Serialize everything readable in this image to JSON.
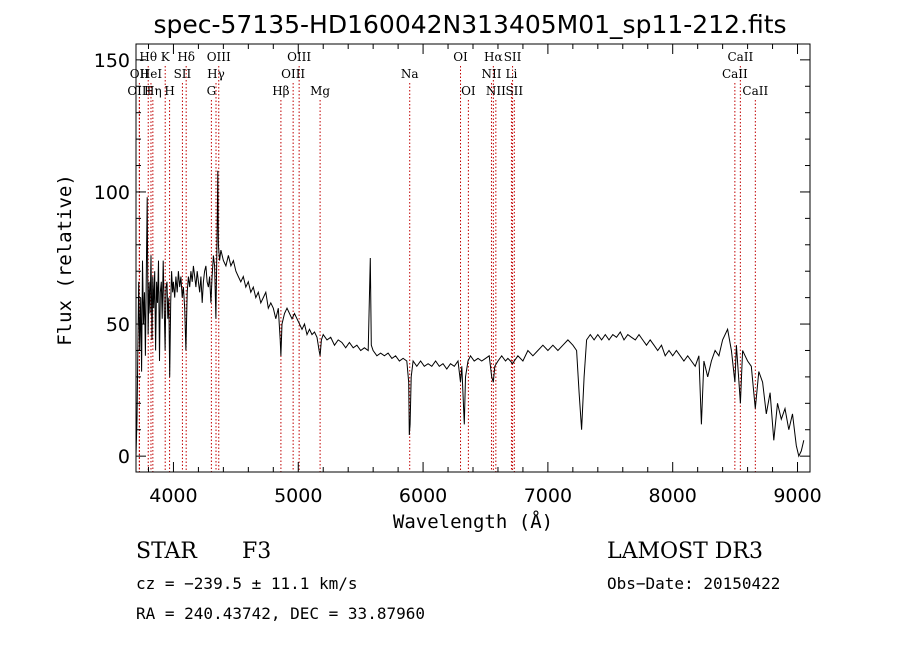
{
  "chart_data": {
    "type": "line",
    "title": "spec-57135-HD160042N313405M01_sp11-212.fits",
    "xlabel": "Wavelength (Å)",
    "ylabel": "Flux (relative)",
    "xlim": [
      3700,
      9100
    ],
    "ylim": [
      -6,
      156
    ],
    "xticks": [
      4000,
      5000,
      6000,
      7000,
      8000,
      9000
    ],
    "yticks": [
      0,
      50,
      100,
      150
    ],
    "grid": false,
    "series": [
      {
        "points": [
          [
            3700,
            0
          ],
          [
            3708,
            14
          ],
          [
            3715,
            42
          ],
          [
            3722,
            66
          ],
          [
            3730,
            40
          ],
          [
            3738,
            60
          ],
          [
            3745,
            32
          ],
          [
            3752,
            74
          ],
          [
            3760,
            50
          ],
          [
            3768,
            62
          ],
          [
            3775,
            38
          ],
          [
            3783,
            72
          ],
          [
            3790,
            98
          ],
          [
            3797,
            46
          ],
          [
            3805,
            66
          ],
          [
            3812,
            54
          ],
          [
            3820,
            76
          ],
          [
            3828,
            44
          ],
          [
            3835,
            68
          ],
          [
            3842,
            56
          ],
          [
            3850,
            70
          ],
          [
            3857,
            40
          ],
          [
            3865,
            66
          ],
          [
            3872,
            58
          ],
          [
            3880,
            74
          ],
          [
            3888,
            36
          ],
          [
            3895,
            62
          ],
          [
            3903,
            66
          ],
          [
            3910,
            52
          ],
          [
            3918,
            74
          ],
          [
            3925,
            58
          ],
          [
            3933,
            40
          ],
          [
            3940,
            64
          ],
          [
            3948,
            66
          ],
          [
            3955,
            52
          ],
          [
            3963,
            60
          ],
          [
            3970,
            30
          ],
          [
            3978,
            58
          ],
          [
            3985,
            70
          ],
          [
            3993,
            62
          ],
          [
            4000,
            66
          ],
          [
            4010,
            60
          ],
          [
            4020,
            68
          ],
          [
            4030,
            62
          ],
          [
            4040,
            70
          ],
          [
            4050,
            64
          ],
          [
            4060,
            68
          ],
          [
            4070,
            60
          ],
          [
            4080,
            64
          ],
          [
            4090,
            56
          ],
          [
            4100,
            40
          ],
          [
            4110,
            62
          ],
          [
            4120,
            68
          ],
          [
            4130,
            64
          ],
          [
            4140,
            70
          ],
          [
            4150,
            66
          ],
          [
            4160,
            72
          ],
          [
            4170,
            68
          ],
          [
            4180,
            64
          ],
          [
            4190,
            70
          ],
          [
            4200,
            66
          ],
          [
            4210,
            62
          ],
          [
            4220,
            68
          ],
          [
            4230,
            58
          ],
          [
            4240,
            66
          ],
          [
            4250,
            70
          ],
          [
            4260,
            72
          ],
          [
            4270,
            66
          ],
          [
            4280,
            64
          ],
          [
            4290,
            68
          ],
          [
            4300,
            58
          ],
          [
            4310,
            68
          ],
          [
            4320,
            76
          ],
          [
            4330,
            72
          ],
          [
            4340,
            52
          ],
          [
            4350,
            84
          ],
          [
            4355,
            108
          ],
          [
            4360,
            80
          ],
          [
            4370,
            74
          ],
          [
            4380,
            78
          ],
          [
            4400,
            74
          ],
          [
            4420,
            72
          ],
          [
            4440,
            76
          ],
          [
            4460,
            72
          ],
          [
            4480,
            74
          ],
          [
            4500,
            70
          ],
          [
            4520,
            68
          ],
          [
            4540,
            66
          ],
          [
            4560,
            68
          ],
          [
            4580,
            64
          ],
          [
            4600,
            66
          ],
          [
            4620,
            62
          ],
          [
            4640,
            64
          ],
          [
            4660,
            60
          ],
          [
            4680,
            62
          ],
          [
            4700,
            58
          ],
          [
            4720,
            60
          ],
          [
            4740,
            62
          ],
          [
            4760,
            56
          ],
          [
            4780,
            58
          ],
          [
            4800,
            56
          ],
          [
            4820,
            52
          ],
          [
            4840,
            56
          ],
          [
            4855,
            44
          ],
          [
            4861,
            38
          ],
          [
            4870,
            50
          ],
          [
            4890,
            54
          ],
          [
            4910,
            56
          ],
          [
            4930,
            54
          ],
          [
            4950,
            52
          ],
          [
            4970,
            54
          ],
          [
            4990,
            52
          ],
          [
            5010,
            50
          ],
          [
            5030,
            48
          ],
          [
            5050,
            50
          ],
          [
            5070,
            46
          ],
          [
            5090,
            48
          ],
          [
            5110,
            46
          ],
          [
            5130,
            47
          ],
          [
            5150,
            45
          ],
          [
            5167,
            40
          ],
          [
            5175,
            38
          ],
          [
            5185,
            44
          ],
          [
            5200,
            46
          ],
          [
            5230,
            44
          ],
          [
            5260,
            45
          ],
          [
            5290,
            42
          ],
          [
            5320,
            44
          ],
          [
            5350,
            43
          ],
          [
            5380,
            41
          ],
          [
            5410,
            43
          ],
          [
            5440,
            41
          ],
          [
            5470,
            42
          ],
          [
            5500,
            40
          ],
          [
            5530,
            41
          ],
          [
            5560,
            40
          ],
          [
            5577,
            75
          ],
          [
            5585,
            42
          ],
          [
            5600,
            40
          ],
          [
            5630,
            38
          ],
          [
            5660,
            39
          ],
          [
            5690,
            38
          ],
          [
            5720,
            39
          ],
          [
            5750,
            37
          ],
          [
            5780,
            38
          ],
          [
            5810,
            36
          ],
          [
            5840,
            37
          ],
          [
            5870,
            36
          ],
          [
            5885,
            28
          ],
          [
            5890,
            8
          ],
          [
            5896,
            12
          ],
          [
            5905,
            30
          ],
          [
            5920,
            36
          ],
          [
            5950,
            34
          ],
          [
            5980,
            36
          ],
          [
            6010,
            34
          ],
          [
            6040,
            35
          ],
          [
            6070,
            34
          ],
          [
            6100,
            36
          ],
          [
            6130,
            34
          ],
          [
            6160,
            35
          ],
          [
            6190,
            33
          ],
          [
            6220,
            35
          ],
          [
            6250,
            34
          ],
          [
            6280,
            36
          ],
          [
            6300,
            28
          ],
          [
            6310,
            34
          ],
          [
            6330,
            12
          ],
          [
            6340,
            30
          ],
          [
            6360,
            36
          ],
          [
            6380,
            38
          ],
          [
            6410,
            36
          ],
          [
            6440,
            37
          ],
          [
            6470,
            36
          ],
          [
            6500,
            37
          ],
          [
            6530,
            38
          ],
          [
            6550,
            30
          ],
          [
            6563,
            28
          ],
          [
            6575,
            34
          ],
          [
            6600,
            36
          ],
          [
            6630,
            38
          ],
          [
            6660,
            36
          ],
          [
            6680,
            37
          ],
          [
            6700,
            36
          ],
          [
            6717,
            35
          ],
          [
            6731,
            36
          ],
          [
            6760,
            38
          ],
          [
            6800,
            36
          ],
          [
            6840,
            40
          ],
          [
            6880,
            38
          ],
          [
            6920,
            40
          ],
          [
            6960,
            42
          ],
          [
            7000,
            40
          ],
          [
            7040,
            42
          ],
          [
            7080,
            40
          ],
          [
            7120,
            42
          ],
          [
            7160,
            44
          ],
          [
            7200,
            42
          ],
          [
            7230,
            40
          ],
          [
            7250,
            24
          ],
          [
            7270,
            10
          ],
          [
            7290,
            30
          ],
          [
            7310,
            44
          ],
          [
            7340,
            46
          ],
          [
            7370,
            44
          ],
          [
            7400,
            46
          ],
          [
            7430,
            44
          ],
          [
            7460,
            46
          ],
          [
            7490,
            44
          ],
          [
            7520,
            46
          ],
          [
            7550,
            45
          ],
          [
            7580,
            47
          ],
          [
            7610,
            44
          ],
          [
            7640,
            46
          ],
          [
            7670,
            45
          ],
          [
            7700,
            44
          ],
          [
            7730,
            46
          ],
          [
            7760,
            44
          ],
          [
            7790,
            42
          ],
          [
            7820,
            44
          ],
          [
            7850,
            42
          ],
          [
            7880,
            40
          ],
          [
            7910,
            42
          ],
          [
            7940,
            38
          ],
          [
            7970,
            40
          ],
          [
            8000,
            38
          ],
          [
            8030,
            40
          ],
          [
            8060,
            38
          ],
          [
            8090,
            36
          ],
          [
            8120,
            38
          ],
          [
            8150,
            36
          ],
          [
            8180,
            34
          ],
          [
            8210,
            38
          ],
          [
            8230,
            12
          ],
          [
            8250,
            36
          ],
          [
            8280,
            30
          ],
          [
            8310,
            36
          ],
          [
            8340,
            40
          ],
          [
            8370,
            38
          ],
          [
            8400,
            44
          ],
          [
            8440,
            48
          ],
          [
            8470,
            40
          ],
          [
            8498,
            28
          ],
          [
            8510,
            42
          ],
          [
            8542,
            20
          ],
          [
            8560,
            40
          ],
          [
            8580,
            38
          ],
          [
            8600,
            36
          ],
          [
            8630,
            34
          ],
          [
            8662,
            18
          ],
          [
            8690,
            32
          ],
          [
            8720,
            28
          ],
          [
            8750,
            16
          ],
          [
            8780,
            24
          ],
          [
            8810,
            6
          ],
          [
            8840,
            20
          ],
          [
            8870,
            14
          ],
          [
            8900,
            18
          ],
          [
            8930,
            10
          ],
          [
            8960,
            16
          ],
          [
            8990,
            4
          ],
          [
            9010,
            0
          ],
          [
            9030,
            2
          ],
          [
            9050,
            6
          ]
        ]
      }
    ],
    "lines": [
      {
        "label": "OII",
        "wave": 3727,
        "row": 1
      },
      {
        "label": "OIII",
        "wave": 3727,
        "row": 2
      },
      {
        "label": "Hθ",
        "wave": 3798,
        "row": 0
      },
      {
        "label": "HeI",
        "wave": 3820,
        "row": 1
      },
      {
        "label": "Hη",
        "wave": 3835,
        "row": 2
      },
      {
        "label": "K",
        "wave": 3934,
        "row": 0
      },
      {
        "label": "SII",
        "wave": 4072,
        "row": 1
      },
      {
        "label": "H",
        "wave": 3969,
        "row": 2
      },
      {
        "label": "Hδ",
        "wave": 4102,
        "row": 0
      },
      {
        "label": "OIII",
        "wave": 4363,
        "row": 0
      },
      {
        "label": "Hγ",
        "wave": 4341,
        "row": 1
      },
      {
        "label": "G",
        "wave": 4304,
        "row": 2
      },
      {
        "label": "Hβ",
        "wave": 4861,
        "row": 2
      },
      {
        "label": "OIII",
        "wave": 5007,
        "row": 0
      },
      {
        "label": "OIII",
        "wave": 4959,
        "row": 1
      },
      {
        "label": "Mg",
        "wave": 5175,
        "row": 2
      },
      {
        "label": "Na",
        "wave": 5893,
        "row": 1
      },
      {
        "label": "OI",
        "wave": 6300,
        "row": 0
      },
      {
        "label": "OI",
        "wave": 6363,
        "row": 2
      },
      {
        "label": "Hα",
        "wave": 6563,
        "row": 0
      },
      {
        "label": "NII",
        "wave": 6548,
        "row": 1
      },
      {
        "label": "NII",
        "wave": 6583,
        "row": 2
      },
      {
        "label": "SII",
        "wave": 6717,
        "row": 0
      },
      {
        "label": "Li",
        "wave": 6708,
        "row": 1
      },
      {
        "label": "SII",
        "wave": 6731,
        "row": 2
      },
      {
        "label": "CaII",
        "wave": 8542,
        "row": 0
      },
      {
        "label": "CaII",
        "wave": 8498,
        "row": 1
      },
      {
        "label": "CaII",
        "wave": 8662,
        "row": 2
      }
    ]
  },
  "footer": {
    "object_class": "STAR",
    "subclass": "F3",
    "survey": "LAMOST DR3",
    "cz": "cz = −239.5 ± 11.1 km/s",
    "obs_date": "Obs−Date: 20150422",
    "coords": "RA = 240.43742, DEC =  33.87960"
  }
}
